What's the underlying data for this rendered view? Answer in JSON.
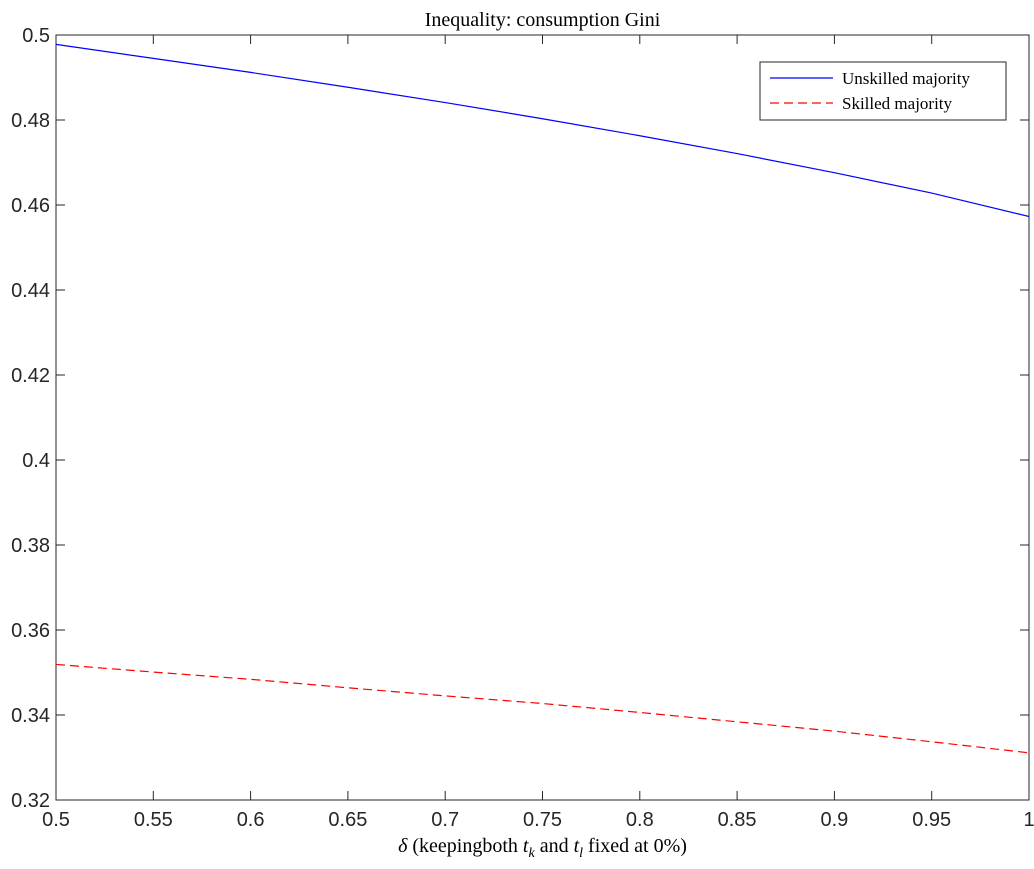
{
  "chart_data": {
    "type": "line",
    "title": "Inequality: consumption Gini",
    "xlabel": {
      "delta": "δ",
      "part1": " (keepingboth ",
      "t": "t",
      "k": "k",
      "part2": " and ",
      "l": "l",
      "part3": " fixed at 0%)"
    },
    "ylabel": "",
    "xlim": [
      0.5,
      1.0
    ],
    "ylim": [
      0.32,
      0.5
    ],
    "xticks": [
      0.5,
      0.55,
      0.6,
      0.65,
      0.7,
      0.75,
      0.8,
      0.85,
      0.9,
      0.95,
      1.0
    ],
    "xtick_labels": [
      "0.5",
      "0.55",
      "0.6",
      "0.65",
      "0.7",
      "0.75",
      "0.8",
      "0.85",
      "0.9",
      "0.95",
      "1"
    ],
    "yticks": [
      0.32,
      0.34,
      0.36,
      0.38,
      0.4,
      0.42,
      0.44,
      0.46,
      0.48,
      0.5
    ],
    "ytick_labels": [
      "0.32",
      "0.34",
      "0.36",
      "0.38",
      "0.4",
      "0.42",
      "0.44",
      "0.46",
      "0.48",
      "0.5"
    ],
    "grid": false,
    "legend_position": "top-right",
    "x": [
      0.5,
      0.55,
      0.6,
      0.65,
      0.7,
      0.75,
      0.8,
      0.85,
      0.9,
      0.95,
      1.0
    ],
    "series": [
      {
        "name": "Unskilled majority",
        "color": "#0000ff",
        "style": "solid",
        "values": [
          0.4978,
          0.4945,
          0.4912,
          0.4877,
          0.4841,
          0.4803,
          0.4763,
          0.4721,
          0.4676,
          0.4628,
          0.4573
        ]
      },
      {
        "name": "Skilled majority",
        "color": "#ff0000",
        "style": "dashed",
        "values": [
          0.3519,
          0.3501,
          0.3484,
          0.3464,
          0.3445,
          0.3427,
          0.3406,
          0.3384,
          0.3362,
          0.3337,
          0.3311
        ]
      }
    ]
  }
}
